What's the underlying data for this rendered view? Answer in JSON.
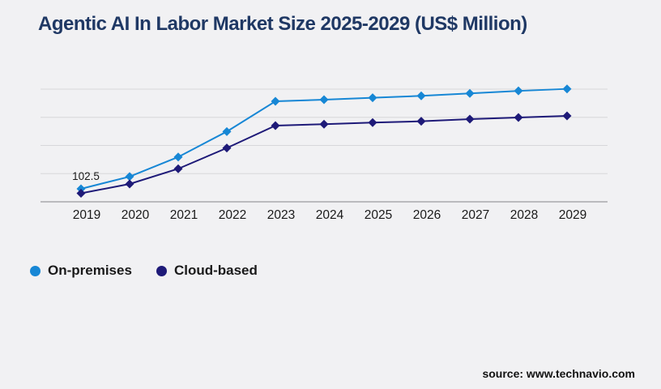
{
  "chart_data": {
    "type": "line",
    "title": "Agentic AI In Labor Market Size 2025-2029 (US$ Million)",
    "categories": [
      "2019",
      "2020",
      "2021",
      "2022",
      "2023",
      "2024",
      "2025",
      "2026",
      "2027",
      "2028",
      "2029"
    ],
    "series": [
      {
        "name": "On-premises",
        "color": "#1787d5",
        "marker": "diamond",
        "values": [
          102.5,
          199,
          354,
          555,
          794,
          807,
          822,
          837,
          856,
          876,
          892
        ]
      },
      {
        "name": "Cloud-based",
        "color": "#1e1a78",
        "marker": "diamond",
        "values": [
          67,
          141,
          261,
          425,
          602,
          613,
          626,
          636,
          653,
          666,
          679
        ]
      }
    ],
    "ylim": [
      0,
      890
    ],
    "xlabel": "",
    "ylabel": "",
    "grid": "horizontal",
    "gridline_count": 5,
    "legend_position": "bottom-left",
    "annotations": [
      {
        "series": "On-premises",
        "category": "2019",
        "label": "102.5"
      }
    ],
    "colors": {
      "background": "#f1f1f3",
      "title": "#1f3864",
      "gridline": "#d7d7da",
      "axis_line": "#a9a9ad",
      "tick_label": "#1a1a1a",
      "annotation_text": "#1a1a1a"
    }
  },
  "footer": {
    "source": "source: www.technavio.com"
  }
}
